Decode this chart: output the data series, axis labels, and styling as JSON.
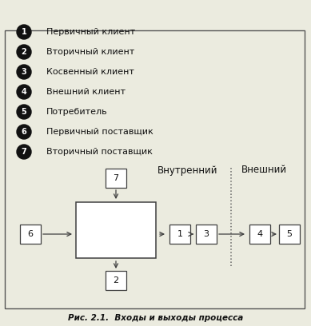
{
  "title": "Рис. 2.1.  Входы и выходы процесса",
  "legend_items": [
    {
      "num": "1",
      "text": "Первичный клиент"
    },
    {
      "num": "2",
      "text": "Вторичный клиент"
    },
    {
      "num": "3",
      "text": "Косвенный клиент"
    },
    {
      "num": "4",
      "text": "Внешний клиент"
    },
    {
      "num": "5",
      "text": "Потребитель"
    },
    {
      "num": "6",
      "text": "Первичный поставщик"
    },
    {
      "num": "7",
      "text": "Вторичный поставщик"
    }
  ],
  "bg_color": "#ebebdf",
  "box_color": "#ffffff",
  "border_color": "#404040",
  "arrow_color": "#404040",
  "bullet_color": "#111111",
  "text_color": "#111111",
  "dotted_line_color": "#666666",
  "outer_border_color": "#555555"
}
